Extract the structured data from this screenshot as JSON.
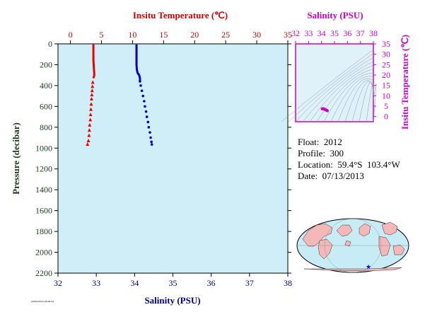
{
  "chart_data": [
    {
      "type": "line",
      "title": "",
      "top_axis": {
        "label": "Insitu Temperature (℃)",
        "range": [
          -2,
          35
        ],
        "ticks": [
          0,
          5,
          10,
          15,
          20,
          25,
          30,
          35
        ],
        "color": "#d40000"
      },
      "bottom_axis": {
        "label": "Salinity (PSU)",
        "range": [
          32,
          38
        ],
        "ticks": [
          32,
          33,
          34,
          35,
          36,
          37,
          38
        ],
        "color": "#00008b"
      },
      "y_axis": {
        "label": "Pressure (decibar)",
        "range": [
          0,
          2200
        ],
        "inverted": true,
        "ticks": [
          0,
          200,
          400,
          600,
          800,
          1000,
          1200,
          1400,
          1600,
          1800,
          2000,
          2200
        ]
      },
      "plot_background": "#d0eef7",
      "series": [
        {
          "axis": "temperature",
          "color": "#ee0000",
          "marker": "triangle",
          "points": [
            {
              "p": 5,
              "v": 3.7
            },
            {
              "p": 50,
              "v": 3.7
            },
            {
              "p": 100,
              "v": 3.7
            },
            {
              "p": 150,
              "v": 3.7
            },
            {
              "p": 200,
              "v": 3.75
            },
            {
              "p": 250,
              "v": 3.8
            },
            {
              "p": 300,
              "v": 3.85
            },
            {
              "p": 330,
              "v": 3.7
            },
            {
              "p": 370,
              "v": 3.6
            },
            {
              "p": 410,
              "v": 3.55
            },
            {
              "p": 450,
              "v": 3.5
            },
            {
              "p": 490,
              "v": 3.45
            },
            {
              "p": 530,
              "v": 3.4
            },
            {
              "p": 580,
              "v": 3.35
            },
            {
              "p": 630,
              "v": 3.3
            },
            {
              "p": 680,
              "v": 3.25
            },
            {
              "p": 730,
              "v": 3.2
            },
            {
              "p": 780,
              "v": 3.1
            },
            {
              "p": 830,
              "v": 3.05
            },
            {
              "p": 880,
              "v": 3.0
            },
            {
              "p": 930,
              "v": 2.9
            },
            {
              "p": 965,
              "v": 2.75
            }
          ]
        },
        {
          "axis": "salinity",
          "color": "#0000cc",
          "marker": "circle",
          "points": [
            {
              "p": 5,
              "v": 34.05
            },
            {
              "p": 50,
              "v": 34.05
            },
            {
              "p": 100,
              "v": 34.05
            },
            {
              "p": 150,
              "v": 34.05
            },
            {
              "p": 200,
              "v": 34.05
            },
            {
              "p": 250,
              "v": 34.06
            },
            {
              "p": 280,
              "v": 34.08
            },
            {
              "p": 300,
              "v": 34.12
            },
            {
              "p": 330,
              "v": 34.14
            },
            {
              "p": 360,
              "v": 34.14
            },
            {
              "p": 400,
              "v": 34.16
            },
            {
              "p": 450,
              "v": 34.19
            },
            {
              "p": 500,
              "v": 34.22
            },
            {
              "p": 550,
              "v": 34.25
            },
            {
              "p": 600,
              "v": 34.27
            },
            {
              "p": 650,
              "v": 34.3
            },
            {
              "p": 700,
              "v": 34.32
            },
            {
              "p": 750,
              "v": 34.35
            },
            {
              "p": 800,
              "v": 34.37
            },
            {
              "p": 850,
              "v": 34.4
            },
            {
              "p": 900,
              "v": 34.42
            },
            {
              "p": 940,
              "v": 34.44
            },
            {
              "p": 965,
              "v": 34.45
            }
          ]
        }
      ]
    },
    {
      "type": "scatter",
      "title": "",
      "x_axis": {
        "label": "Salinity (PSU)",
        "range": [
          32,
          38
        ],
        "ticks": [
          32,
          33,
          34,
          35,
          36,
          37,
          38
        ]
      },
      "y_axis": {
        "label": "Insitu Temperature (℃)",
        "range": [
          -2.5,
          35
        ],
        "ticks": [
          0,
          5,
          10,
          15,
          20,
          25,
          30,
          35
        ]
      },
      "color": "#cc00cc",
      "density_contours": true,
      "points": [
        {
          "s": 34.05,
          "t": 3.7
        },
        {
          "s": 34.1,
          "t": 3.75
        },
        {
          "s": 34.14,
          "t": 3.8
        },
        {
          "s": 34.2,
          "t": 3.6
        },
        {
          "s": 34.25,
          "t": 3.5
        },
        {
          "s": 34.3,
          "t": 3.3
        },
        {
          "s": 34.35,
          "t": 3.1
        },
        {
          "s": 34.4,
          "t": 3.0
        },
        {
          "s": 34.45,
          "t": 2.75
        },
        {
          "s": 34.42,
          "t": 2.9
        },
        {
          "s": 34.16,
          "t": 3.55
        }
      ]
    }
  ],
  "info": {
    "float": "Float:  2012",
    "profile": "Profile:  300",
    "location": "Location:  59.4°S  103.4°W",
    "date": "Date:  07/13/2013"
  },
  "map": {
    "marker_lat": -59.4,
    "marker_lon": -103.4,
    "marker_color": "#0000ff",
    "land_color": "#f4b8b8",
    "ocean_color": "#c8ecf6"
  },
  "footer_text": "AOML/GDAC 20130714"
}
